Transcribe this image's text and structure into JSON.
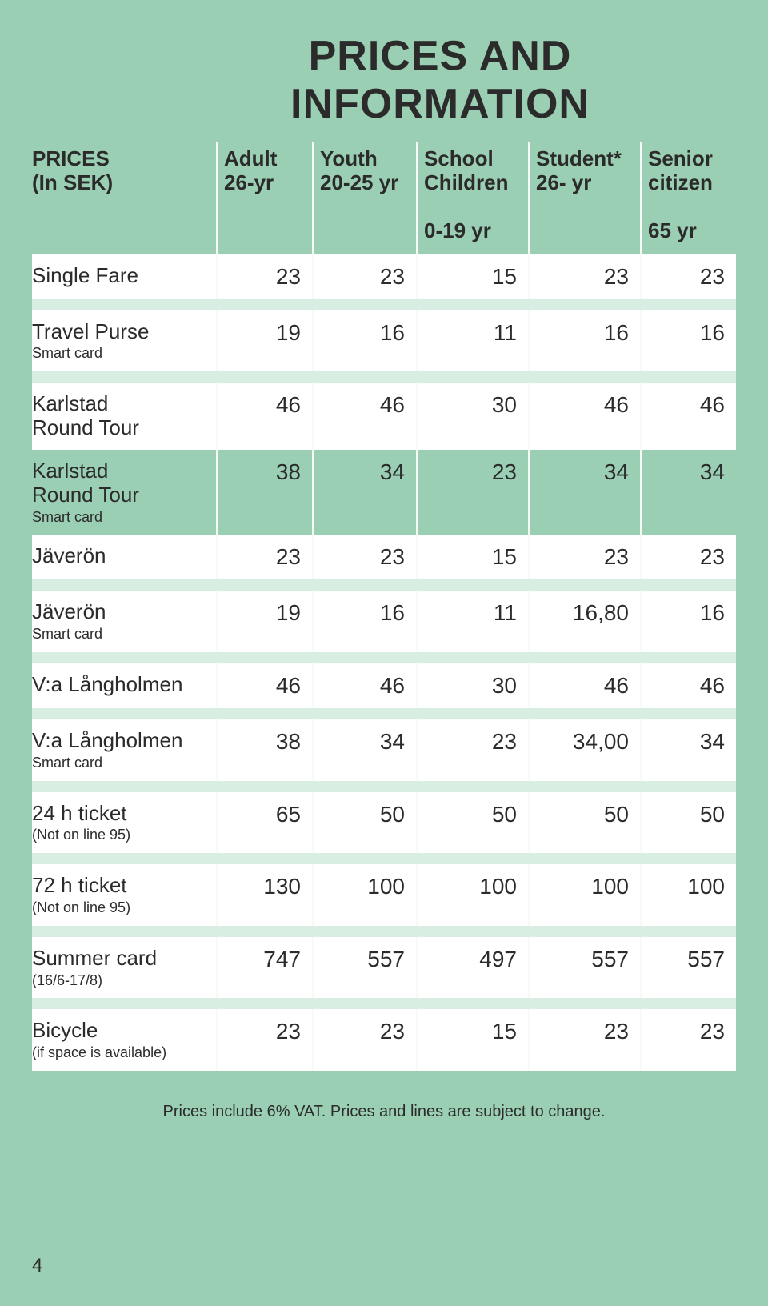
{
  "title": "PRICES AND INFORMATION",
  "columns": [
    {
      "line1": "PRICES",
      "line2": "(In SEK)"
    },
    {
      "line1": "Adult",
      "line2": "26-yr"
    },
    {
      "line1": "Youth",
      "line2": "20-25 yr"
    },
    {
      "line1": "School",
      "line2": "Children",
      "line3": "0-19 yr"
    },
    {
      "line1": "Student*",
      "line2": "26- yr"
    },
    {
      "line1": "Senior",
      "line2": "citizen",
      "line3": "65 yr"
    }
  ],
  "rows": [
    {
      "label": "Single Fare",
      "small": "",
      "vals": [
        "23",
        "23",
        "15",
        "23",
        "23"
      ],
      "bg": "white",
      "band_after": true
    },
    {
      "label": "Travel Purse",
      "small": "Smart card",
      "vals": [
        "19",
        "16",
        "11",
        "16",
        "16"
      ],
      "bg": "white",
      "band_after": true
    },
    {
      "label": "Karlstad",
      "label2": "Round Tour",
      "small": "",
      "vals": [
        "46",
        "46",
        "30",
        "46",
        "46"
      ],
      "bg": "white",
      "band_after": false
    },
    {
      "label": "Karlstad",
      "label2": "Round Tour",
      "small": "Smart card",
      "vals": [
        "38",
        "34",
        "23",
        "34",
        "34"
      ],
      "bg": "none",
      "band_after": false
    },
    {
      "label": "Jäverön",
      "small": "",
      "vals": [
        "23",
        "23",
        "15",
        "23",
        "23"
      ],
      "bg": "white",
      "band_after": true
    },
    {
      "label": "Jäverön",
      "small": "Smart card",
      "vals": [
        "19",
        "16",
        "11",
        "16,80",
        "16"
      ],
      "bg": "white",
      "band_after": true
    },
    {
      "label": "V:a Långholmen",
      "small": "",
      "vals": [
        "46",
        "46",
        "30",
        "46",
        "46"
      ],
      "bg": "white",
      "band_after": true
    },
    {
      "label": "V:a Långholmen",
      "small": "Smart card",
      "vals": [
        "38",
        "34",
        "23",
        "34,00",
        "34"
      ],
      "bg": "white",
      "band_after": true
    },
    {
      "label": "24 h ticket",
      "small": "(Not on line 95)",
      "vals": [
        "65",
        "50",
        "50",
        "50",
        "50"
      ],
      "bg": "white",
      "band_after": true
    },
    {
      "label": "72 h ticket",
      "small": "(Not on line 95)",
      "vals": [
        "130",
        "100",
        "100",
        "100",
        "100"
      ],
      "bg": "white",
      "band_after": true
    },
    {
      "label": "Summer card",
      "small": "(16/6-17/8)",
      "vals": [
        "747",
        "557",
        "497",
        "557",
        "557"
      ],
      "bg": "white",
      "band_after": true
    },
    {
      "label": "Bicycle",
      "small": "(if space is available)",
      "vals": [
        "23",
        "23",
        "15",
        "23",
        "23"
      ],
      "bg": "white",
      "band_after": false
    }
  ],
  "footer": "Prices include 6% VAT. Prices and lines are subject to change.",
  "page_number": "4",
  "colors": {
    "bg": "#9bcfb4",
    "row_white": "#ffffff",
    "band": "#d9eee3",
    "divider": "#f5fbf7",
    "text": "#2b2b2b"
  }
}
